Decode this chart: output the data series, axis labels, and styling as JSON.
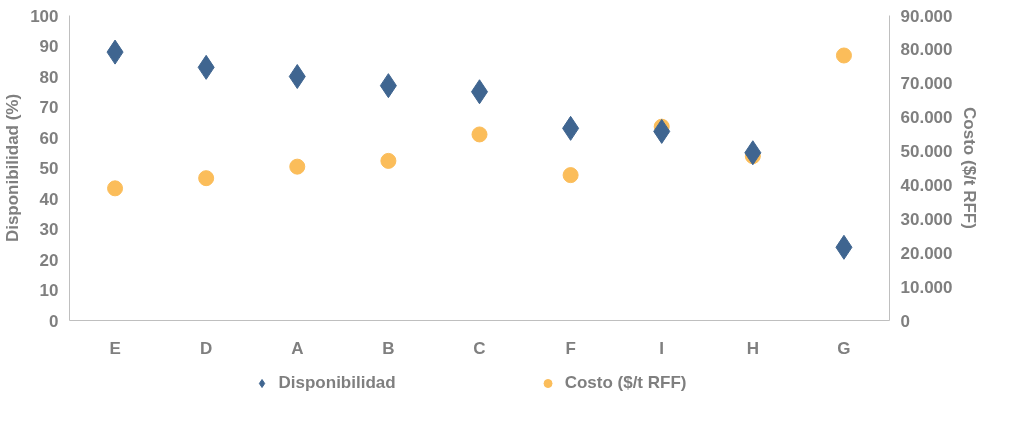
{
  "chart_data": {
    "type": "scatter",
    "categories": [
      "E",
      "D",
      "A",
      "B",
      "C",
      "F",
      "I",
      "H",
      "G"
    ],
    "ylabel": "Disponibilidad (%)",
    "y2label": "Costo ($/t RFF)",
    "series": [
      {
        "name": "Disponibilidad",
        "color": "#3f6590",
        "marker": "diamond",
        "values": [
          88,
          83,
          80,
          77,
          75,
          63,
          62,
          55,
          24
        ]
      },
      {
        "name": "Costo ($/t RFF)",
        "color": "#fbbd5a",
        "marker": "circle",
        "axis": "y2",
        "values": [
          39000,
          42000,
          45400,
          47100,
          54900,
          42900,
          57200,
          48500,
          78200
        ]
      }
    ],
    "ylim": [
      0,
      100
    ],
    "yticks": [
      0,
      10,
      20,
      30,
      40,
      50,
      60,
      70,
      80,
      90,
      100
    ],
    "y2lim": [
      0,
      90000
    ],
    "y2ticks": [
      {
        "value": 0,
        "label": "0"
      },
      {
        "value": 10000,
        "label": "10.000"
      },
      {
        "value": 20000,
        "label": "20.000"
      },
      {
        "value": 30000,
        "label": "30.000"
      },
      {
        "value": 40000,
        "label": "40.000"
      },
      {
        "value": 50000,
        "label": "50.000"
      },
      {
        "value": 60000,
        "label": "60.000"
      },
      {
        "value": 70000,
        "label": "70.000"
      },
      {
        "value": 80000,
        "label": "80.000"
      },
      {
        "value": 90000,
        "label": "90.000"
      }
    ],
    "grid": false,
    "legend": "bottom"
  }
}
